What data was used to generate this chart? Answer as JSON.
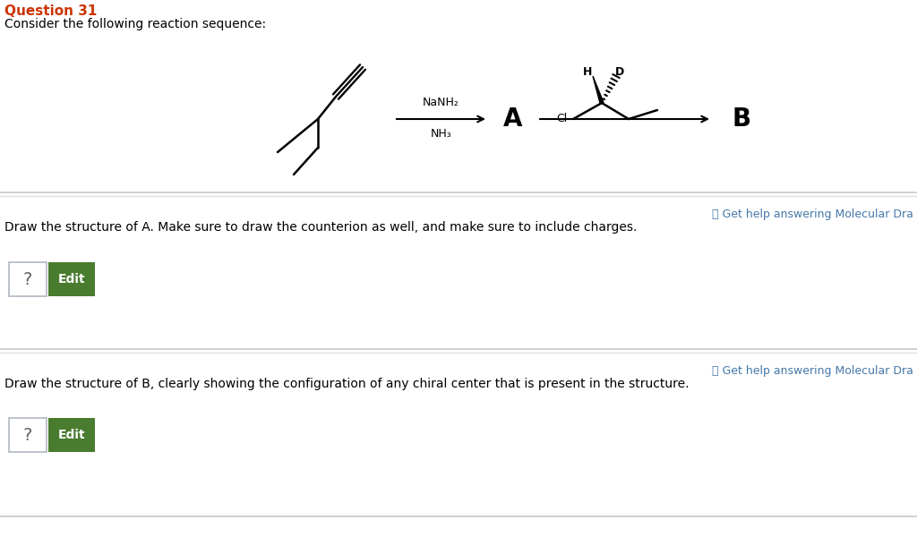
{
  "title": "Question 31",
  "subtitle": "Consider the following reaction sequence:",
  "title_color": "#cc3300",
  "bg_color": "#ffffff",
  "reagent1_line1": "NaNH₂",
  "reagent1_line2": "NH₃",
  "label_A": "A",
  "label_B": "B",
  "question1": "Draw the structure of A. Make sure to draw the counterion as well, and make sure to include charges.",
  "question2": "Draw the structure of B, clearly showing the configuration of any chiral center that is present in the structure.",
  "help_text": "ⓘ Get help answering Molecular Dra",
  "divider_color": "#c8c8c8",
  "divider_color2": "#e0e0e0",
  "edit_button_color": "#4a7c2f",
  "edit_button_text_color": "#ffffff"
}
